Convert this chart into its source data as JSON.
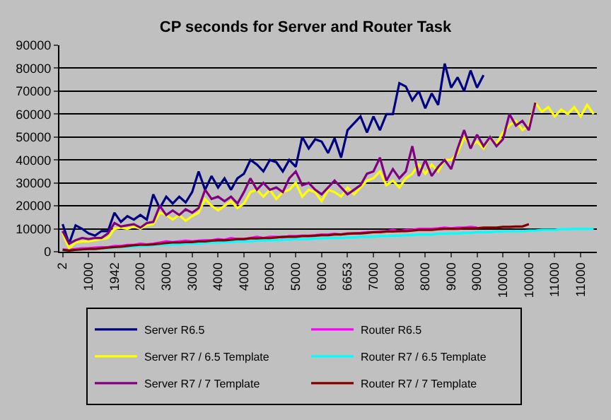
{
  "chart_data": {
    "type": "line",
    "title": "CP seconds for Server and Router Task",
    "categories": [
      "2",
      null,
      null,
      null,
      "1000",
      null,
      null,
      null,
      "1942",
      null,
      null,
      null,
      "2000",
      null,
      null,
      null,
      "3000",
      null,
      null,
      null,
      "3000",
      null,
      null,
      null,
      "4000",
      null,
      null,
      null,
      "4000",
      null,
      null,
      null,
      "5000",
      null,
      null,
      null,
      "5000",
      null,
      null,
      null,
      "6000",
      null,
      null,
      null,
      "6653",
      null,
      null,
      null,
      "7000",
      null,
      null,
      null,
      "8000",
      null,
      null,
      null,
      "8000",
      null,
      null,
      null,
      "9000",
      null,
      null,
      null,
      "9000",
      null,
      null,
      null,
      "10000",
      null,
      null,
      null,
      "10000",
      null,
      null,
      null,
      "11000",
      null,
      null,
      null,
      "11000",
      null,
      null
    ],
    "series": [
      {
        "name": "Server R6.5",
        "color": "#000080",
        "values": [
          12000,
          3500,
          11500,
          10000,
          8000,
          7000,
          9000,
          9000,
          17000,
          13000,
          15500,
          14000,
          16000,
          14000,
          25000,
          19000,
          24000,
          21000,
          24000,
          21500,
          26000,
          35000,
          27000,
          33000,
          28000,
          32000,
          27000,
          32000,
          34000,
          40000,
          38000,
          35000,
          40000,
          39000,
          35000,
          40000,
          37000,
          50000,
          45000,
          49000,
          48000,
          43000,
          49500,
          41000,
          53000,
          56000,
          59000,
          52000,
          59000,
          53000,
          60000,
          60000,
          73500,
          72000,
          66000,
          70000,
          62500,
          69000,
          64000,
          82000,
          71500,
          76000,
          70000,
          79000,
          71500,
          77000,
          null,
          null,
          null,
          null,
          null,
          null,
          null,
          null,
          null,
          null,
          null,
          null,
          null,
          null,
          null,
          null,
          null
        ]
      },
      {
        "name": "Router R6.5",
        "color": "#ff00ff",
        "values": [
          1000,
          800,
          1200,
          1500,
          1500,
          1800,
          2000,
          2000,
          2500,
          2500,
          3000,
          3000,
          3500,
          3200,
          3500,
          4000,
          4500,
          4200,
          4500,
          4800,
          4500,
          4800,
          5000,
          5000,
          5500,
          5200,
          6000,
          5500,
          5500,
          6000,
          6500,
          6000,
          6500,
          6500,
          6200,
          6800,
          6800,
          7000,
          7000,
          7200,
          7500,
          7500,
          7800,
          7500,
          8000,
          8000,
          8200,
          8500,
          8500,
          8800,
          9000,
          9500,
          9000,
          9500,
          9500,
          10000,
          10000,
          10000,
          10200,
          10500,
          10200,
          10500,
          10500,
          10800,
          10500,
          null,
          null,
          null,
          null,
          null,
          null,
          null,
          null,
          null,
          null,
          null,
          null,
          null,
          null,
          null,
          null,
          null,
          null
        ]
      },
      {
        "name": "Server R7 / 6.5 Template",
        "color": "#ffff00",
        "values": [
          8000,
          1500,
          4000,
          4500,
          4500,
          5000,
          5500,
          6000,
          10000,
          10500,
          10000,
          11000,
          10000,
          11500,
          12000,
          17000,
          16000,
          14000,
          16000,
          13500,
          15500,
          17000,
          23000,
          20000,
          18000,
          20000,
          22000,
          19000,
          21000,
          26000,
          27000,
          24000,
          27000,
          23000,
          26000,
          27000,
          30000,
          24000,
          27000,
          26000,
          22000,
          27000,
          26000,
          24000,
          28000,
          25000,
          28000,
          31000,
          32000,
          35000,
          29000,
          31000,
          28000,
          32000,
          34000,
          38000,
          34000,
          38000,
          35000,
          40000,
          40000,
          43000,
          50000,
          46000,
          48000,
          45000,
          50000,
          47000,
          52000,
          55000,
          57000,
          53000,
          55000,
          65000,
          61000,
          63000,
          59000,
          62000,
          60000,
          63000,
          59000,
          64000,
          60000
        ]
      },
      {
        "name": "Router R7 / 6.5 Template",
        "color": "#00ffff",
        "values": [
          500,
          500,
          800,
          1000,
          1000,
          1200,
          1500,
          1500,
          1800,
          2000,
          2000,
          2200,
          2500,
          2500,
          2800,
          3000,
          3000,
          3200,
          3200,
          3500,
          3500,
          3500,
          3800,
          4000,
          4000,
          4200,
          4200,
          4500,
          4500,
          4500,
          4800,
          5000,
          5000,
          5000,
          5200,
          5200,
          5500,
          5500,
          5500,
          5800,
          5800,
          6000,
          6000,
          6000,
          6200,
          6200,
          6500,
          6500,
          6500,
          6800,
          6800,
          7000,
          7000,
          7200,
          7200,
          7500,
          7500,
          7500,
          7800,
          7800,
          8000,
          8000,
          8200,
          8200,
          8500,
          8500,
          8500,
          8800,
          8800,
          9000,
          9000,
          9000,
          9200,
          9200,
          9500,
          9500,
          9500,
          9800,
          9800,
          10000,
          10000,
          10000,
          10000
        ]
      },
      {
        "name": "Server R7 / 7 Template",
        "color": "#800080",
        "values": [
          9000,
          3500,
          5000,
          6000,
          5500,
          6000,
          6000,
          8000,
          12500,
          11000,
          11500,
          12000,
          10500,
          12500,
          13000,
          20000,
          16000,
          18000,
          16000,
          18500,
          17000,
          19000,
          27000,
          23000,
          24000,
          22000,
          24000,
          21000,
          26000,
          32000,
          27000,
          30000,
          27000,
          28000,
          26000,
          32000,
          35000,
          29000,
          30000,
          27000,
          25000,
          28000,
          31000,
          28000,
          25000,
          27000,
          29000,
          34000,
          35000,
          41000,
          31000,
          36000,
          32000,
          35000,
          46000,
          33000,
          40000,
          33000,
          37000,
          40000,
          36000,
          45000,
          53000,
          45000,
          51000,
          46000,
          50000,
          46000,
          49000,
          60000,
          55000,
          57000,
          53000,
          65000,
          null,
          null,
          null,
          null,
          null,
          null,
          null,
          null,
          null
        ]
      },
      {
        "name": "Router R7 / 7 Template",
        "color": "#800000",
        "values": [
          800,
          500,
          800,
          1000,
          1200,
          1200,
          1500,
          1800,
          2000,
          2200,
          2500,
          2800,
          3000,
          3000,
          3200,
          3500,
          3800,
          4000,
          4000,
          4200,
          4200,
          4500,
          4500,
          4800,
          5000,
          5000,
          5200,
          5500,
          5500,
          5800,
          5800,
          6000,
          6000,
          6200,
          6500,
          6500,
          6500,
          6800,
          6800,
          7000,
          7200,
          7200,
          7500,
          7500,
          7800,
          8000,
          8000,
          8200,
          8500,
          8500,
          8800,
          8800,
          9000,
          9000,
          9200,
          9500,
          9500,
          9500,
          9800,
          10000,
          10000,
          10000,
          10200,
          10200,
          10200,
          10500,
          10500,
          10500,
          10800,
          10800,
          11000,
          11000,
          12000,
          null,
          null,
          null,
          null,
          null,
          null,
          null,
          null,
          null,
          null
        ]
      }
    ],
    "ylim": [
      0,
      90000
    ],
    "yticks": [
      0,
      10000,
      20000,
      30000,
      40000,
      50000,
      60000,
      70000,
      80000,
      90000
    ],
    "grid": "y",
    "legend": "bottom",
    "marker": "none",
    "line_style": "solid"
  }
}
